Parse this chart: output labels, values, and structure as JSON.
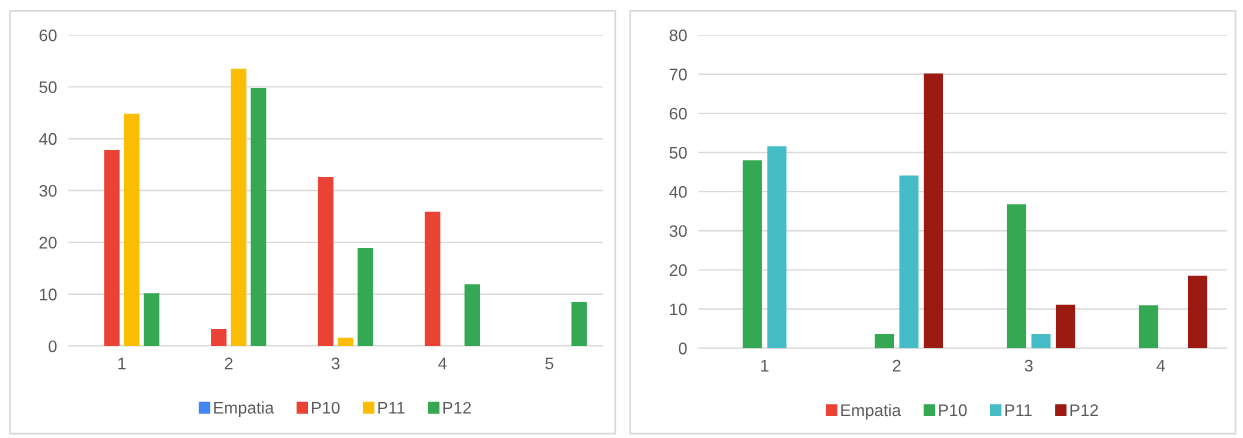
{
  "chart_data": [
    {
      "type": "bar",
      "categories": [
        "1",
        "2",
        "3",
        "4",
        "5"
      ],
      "ylim": [
        0,
        60
      ],
      "yticks": [
        0,
        10,
        20,
        30,
        40,
        50,
        60
      ],
      "grid": "y",
      "legend": "bottom",
      "series": [
        {
          "name": "Empatia",
          "color": "#4285f4",
          "values": [
            null,
            null,
            null,
            null,
            null
          ]
        },
        {
          "name": "P10",
          "color": "#ea4335",
          "values": [
            37.8,
            3.3,
            32.6,
            25.9,
            null
          ]
        },
        {
          "name": "P11",
          "color": "#fbbc04",
          "values": [
            44.8,
            53.5,
            1.6,
            null,
            null
          ]
        },
        {
          "name": "P12",
          "color": "#34a853",
          "values": [
            10.2,
            49.8,
            18.9,
            11.9,
            8.5
          ]
        }
      ]
    },
    {
      "type": "bar",
      "categories": [
        "1",
        "2",
        "3",
        "4"
      ],
      "ylim": [
        0,
        80
      ],
      "yticks": [
        0,
        10,
        20,
        30,
        40,
        50,
        60,
        70,
        80
      ],
      "grid": "y",
      "legend": "bottom",
      "series": [
        {
          "name": "Empatia",
          "color": "#ea4335",
          "values": [
            null,
            null,
            null,
            null
          ]
        },
        {
          "name": "P10",
          "color": "#34a853",
          "values": [
            48.0,
            3.6,
            36.8,
            11.0
          ]
        },
        {
          "name": "P11",
          "color": "#46bdc6",
          "values": [
            51.6,
            44.1,
            3.6,
            null
          ]
        },
        {
          "name": "P12",
          "color": "#9b1b12",
          "values": [
            null,
            70.2,
            11.1,
            18.5
          ]
        }
      ]
    }
  ]
}
